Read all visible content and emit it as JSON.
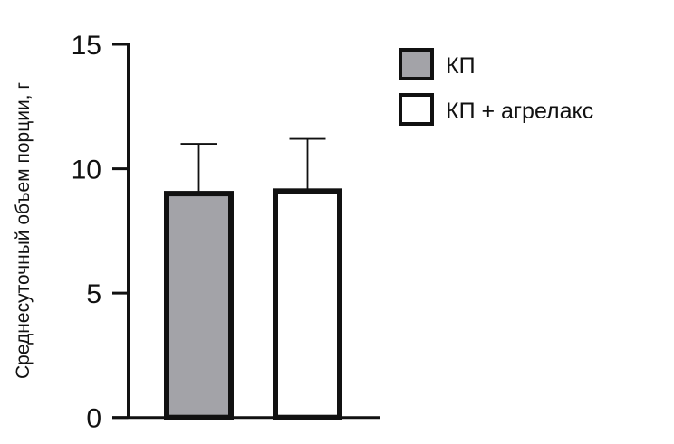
{
  "chart_data": {
    "type": "bar",
    "title": "",
    "xlabel": "",
    "ylabel": "Среднесуточный объем порции, г",
    "ylim": [
      0,
      15
    ],
    "yticks": [
      0,
      5,
      10,
      15
    ],
    "ytick_labels": [
      "0",
      "5",
      "10",
      "15"
    ],
    "grid": false,
    "legend_position": "top-right",
    "categories": [
      "КП",
      "КП + агрелакс"
    ],
    "series": [
      {
        "name": "КП",
        "value": 9.0,
        "error": 2.0,
        "color": "#a3a3a8"
      },
      {
        "name": "КП + агрелакс",
        "value": 9.1,
        "error": 2.1,
        "color": "#ffffff"
      }
    ]
  }
}
